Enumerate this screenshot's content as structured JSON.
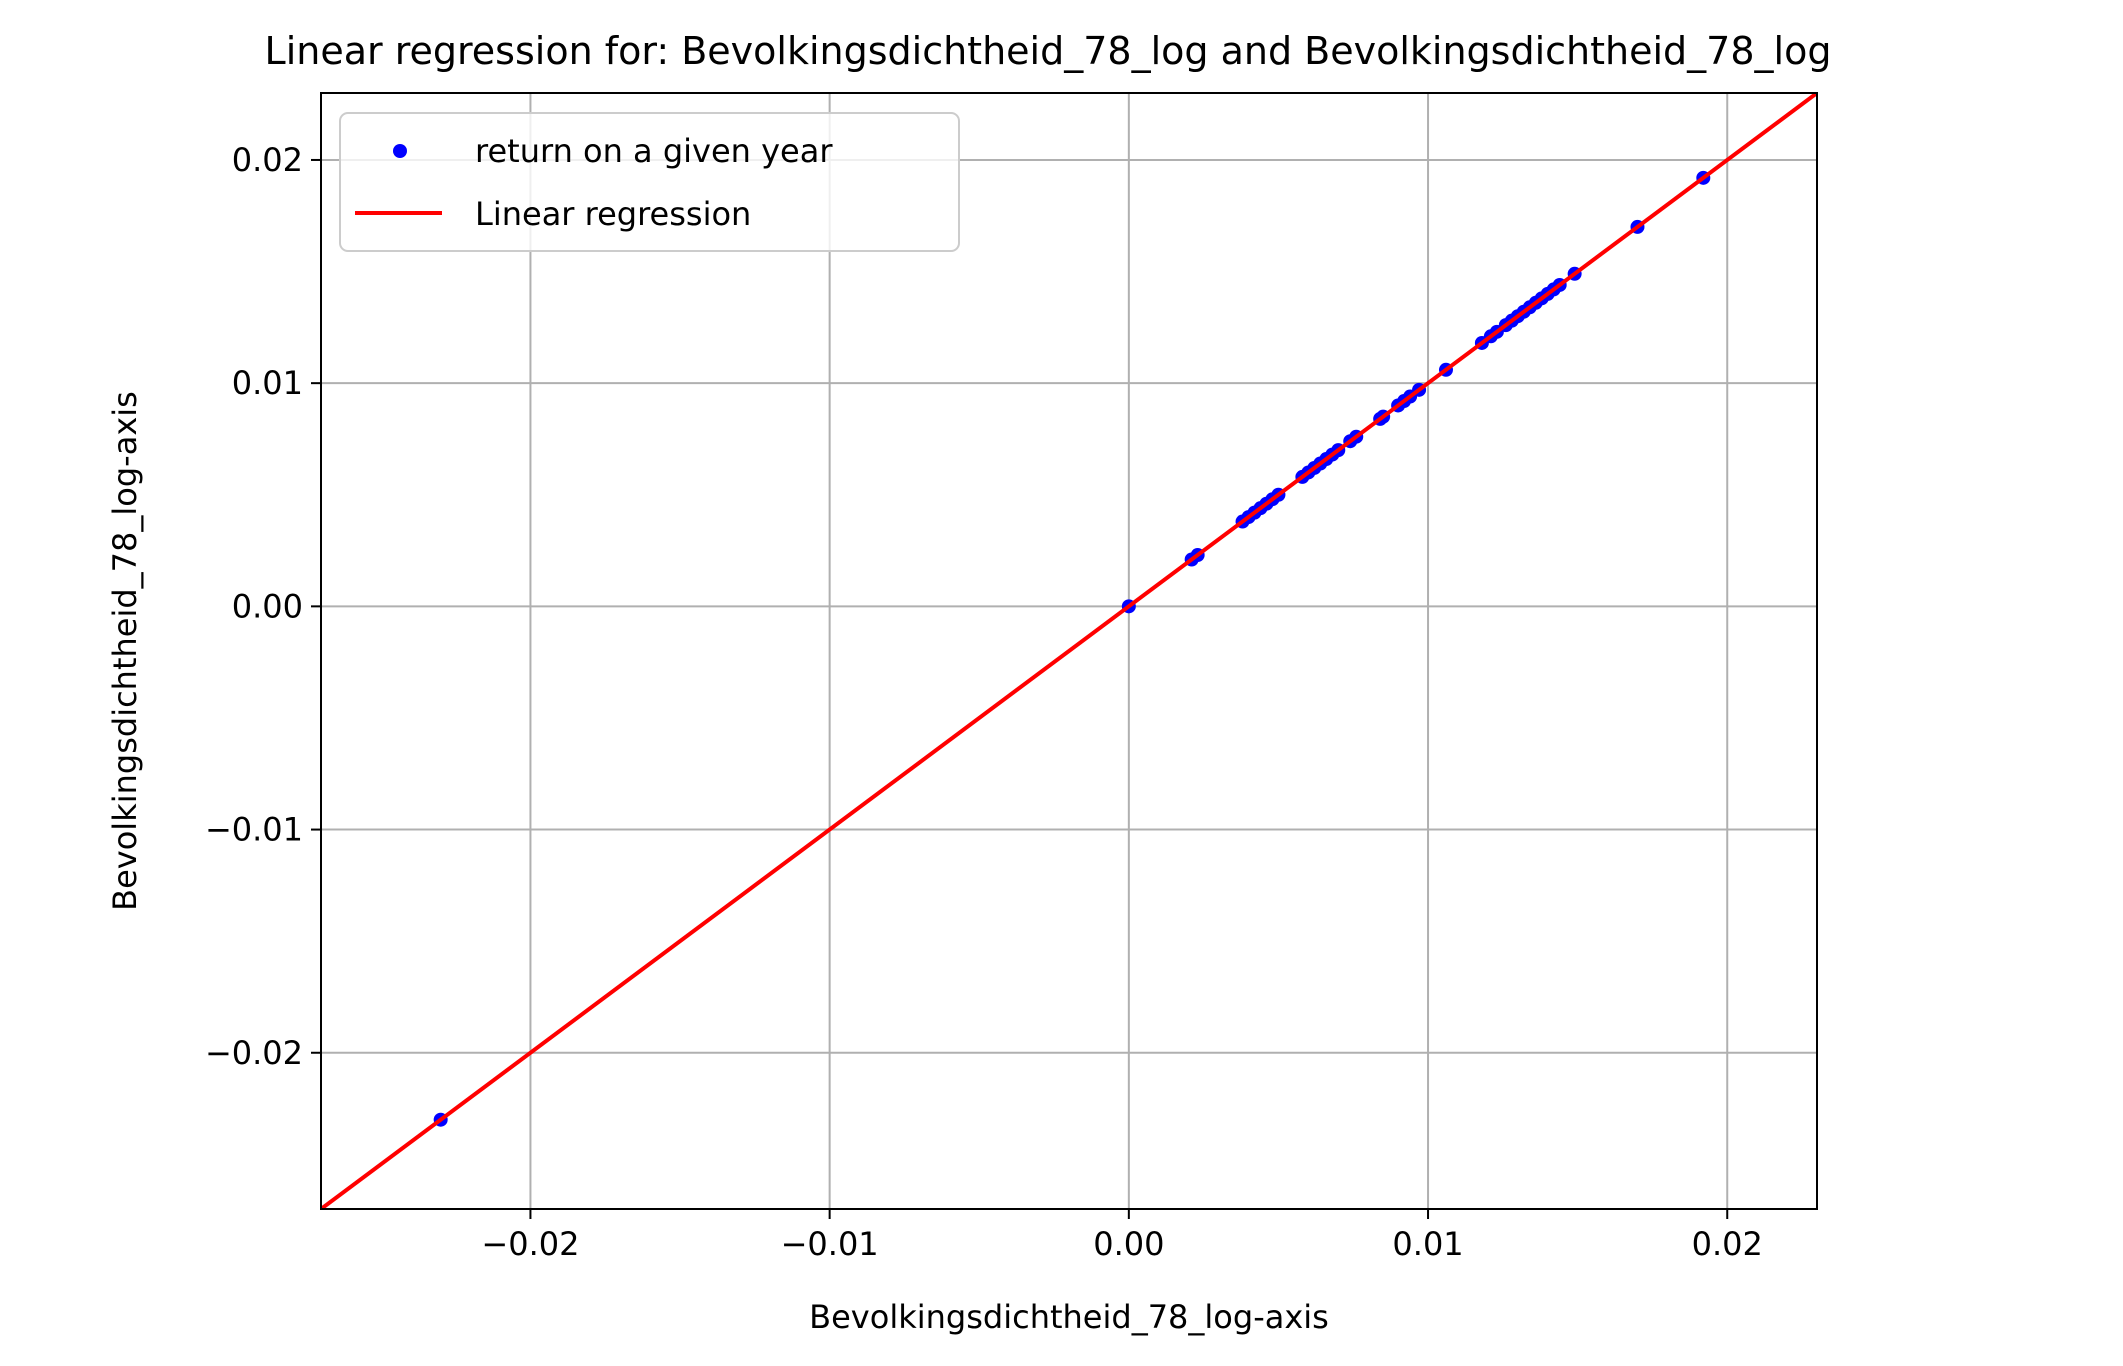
{
  "chart_data": {
    "type": "scatter",
    "title": "Linear regression for: Bevolkingsdichtheid_78_log and Bevolkingsdichtheid_78_log",
    "xlabel": "Bevolkingsdichtheid_78_log-axis",
    "ylabel": "Bevolkingsdichtheid_78_log-axis",
    "xlim": [
      -0.027,
      0.023
    ],
    "ylim": [
      -0.027,
      0.023
    ],
    "x_ticks": [
      -0.02,
      -0.01,
      0.0,
      0.01,
      0.02
    ],
    "x_tick_labels": [
      "−0.02",
      "−0.01",
      "0.00",
      "0.01",
      "0.02"
    ],
    "y_ticks": [
      -0.02,
      -0.01,
      0.0,
      0.01,
      0.02
    ],
    "y_tick_labels": [
      "−0.02",
      "−0.01",
      "0.00",
      "0.01",
      "0.02"
    ],
    "grid": true,
    "legend_position": "top-left",
    "series": [
      {
        "name": "return on a given year",
        "kind": "scatter",
        "color": "#0000ff",
        "points": [
          [
            -0.023,
            -0.023
          ],
          [
            0.0,
            0.0
          ],
          [
            0.0021,
            0.0021
          ],
          [
            0.0023,
            0.0023
          ],
          [
            0.0038,
            0.0038
          ],
          [
            0.004,
            0.004
          ],
          [
            0.0042,
            0.0042
          ],
          [
            0.0044,
            0.0044
          ],
          [
            0.0046,
            0.0046
          ],
          [
            0.0048,
            0.0048
          ],
          [
            0.005,
            0.005
          ],
          [
            0.0058,
            0.0058
          ],
          [
            0.006,
            0.006
          ],
          [
            0.0062,
            0.0062
          ],
          [
            0.0064,
            0.0064
          ],
          [
            0.0066,
            0.0066
          ],
          [
            0.0068,
            0.0068
          ],
          [
            0.007,
            0.007
          ],
          [
            0.0074,
            0.0074
          ],
          [
            0.0076,
            0.0076
          ],
          [
            0.0084,
            0.0084
          ],
          [
            0.0085,
            0.0085
          ],
          [
            0.009,
            0.009
          ],
          [
            0.0092,
            0.0092
          ],
          [
            0.0094,
            0.0094
          ],
          [
            0.0097,
            0.0097
          ],
          [
            0.0106,
            0.0106
          ],
          [
            0.0118,
            0.0118
          ],
          [
            0.0121,
            0.0121
          ],
          [
            0.0123,
            0.0123
          ],
          [
            0.0126,
            0.0126
          ],
          [
            0.0128,
            0.0128
          ],
          [
            0.013,
            0.013
          ],
          [
            0.0132,
            0.0132
          ],
          [
            0.0134,
            0.0134
          ],
          [
            0.0136,
            0.0136
          ],
          [
            0.0138,
            0.0138
          ],
          [
            0.014,
            0.014
          ],
          [
            0.0142,
            0.0142
          ],
          [
            0.0144,
            0.0144
          ],
          [
            0.0149,
            0.0149
          ],
          [
            0.017,
            0.017
          ],
          [
            0.0192,
            0.0192
          ]
        ]
      },
      {
        "name": "Linear regression",
        "kind": "line",
        "color": "#ff0000",
        "slope": 1.0,
        "intercept": 0.0
      }
    ]
  }
}
